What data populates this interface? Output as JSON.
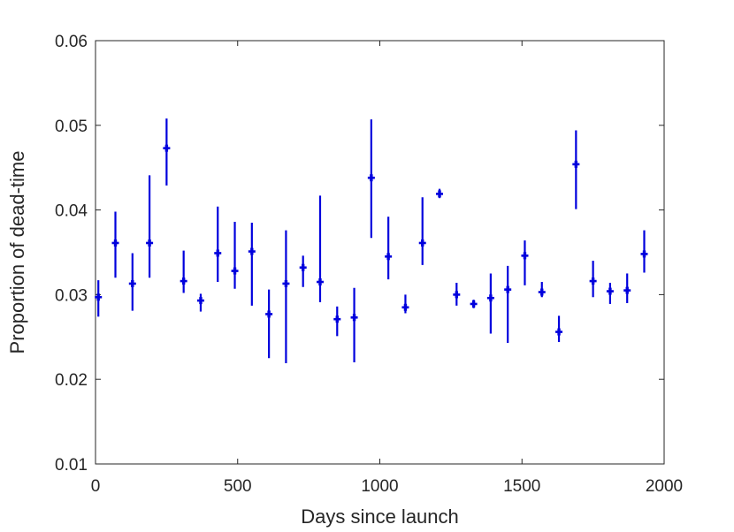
{
  "chart_data": {
    "type": "scatter",
    "title": "",
    "xlabel": "Days since launch",
    "ylabel": "Proportion of dead-time",
    "xlim": [
      0,
      2000
    ],
    "ylim": [
      0.01,
      0.06
    ],
    "xticks": [
      0,
      500,
      1000,
      1500,
      2000
    ],
    "xtick_labels": [
      "0",
      "500",
      "1000",
      "1500",
      "2000"
    ],
    "yticks": [
      0.01,
      0.02,
      0.03,
      0.04,
      0.05,
      0.06
    ],
    "ytick_labels": [
      "0.01",
      "0.02",
      "0.03",
      "0.04",
      "0.05",
      "0.06"
    ],
    "grid": false,
    "legend": "none",
    "color": "#0000dd",
    "points": [
      {
        "x": 10,
        "y": 0.0297,
        "lo": 0.0274,
        "hi": 0.0317
      },
      {
        "x": 70,
        "y": 0.0361,
        "lo": 0.032,
        "hi": 0.0398
      },
      {
        "x": 130,
        "y": 0.0313,
        "lo": 0.0281,
        "hi": 0.0349
      },
      {
        "x": 190,
        "y": 0.0361,
        "lo": 0.032,
        "hi": 0.0441
      },
      {
        "x": 250,
        "y": 0.0473,
        "lo": 0.0429,
        "hi": 0.0508
      },
      {
        "x": 310,
        "y": 0.0316,
        "lo": 0.0302,
        "hi": 0.0352
      },
      {
        "x": 370,
        "y": 0.0293,
        "lo": 0.028,
        "hi": 0.0301
      },
      {
        "x": 430,
        "y": 0.0349,
        "lo": 0.0315,
        "hi": 0.0404
      },
      {
        "x": 490,
        "y": 0.0328,
        "lo": 0.0307,
        "hi": 0.0386
      },
      {
        "x": 550,
        "y": 0.0351,
        "lo": 0.0287,
        "hi": 0.0385
      },
      {
        "x": 610,
        "y": 0.0277,
        "lo": 0.0225,
        "hi": 0.0306
      },
      {
        "x": 670,
        "y": 0.0313,
        "lo": 0.0219,
        "hi": 0.0376
      },
      {
        "x": 730,
        "y": 0.0332,
        "lo": 0.0309,
        "hi": 0.0346
      },
      {
        "x": 790,
        "y": 0.0315,
        "lo": 0.0291,
        "hi": 0.0417
      },
      {
        "x": 850,
        "y": 0.0271,
        "lo": 0.0251,
        "hi": 0.0286
      },
      {
        "x": 910,
        "y": 0.0273,
        "lo": 0.022,
        "hi": 0.0308
      },
      {
        "x": 970,
        "y": 0.0438,
        "lo": 0.0367,
        "hi": 0.0507
      },
      {
        "x": 1030,
        "y": 0.0345,
        "lo": 0.0318,
        "hi": 0.0392
      },
      {
        "x": 1090,
        "y": 0.0285,
        "lo": 0.0278,
        "hi": 0.03
      },
      {
        "x": 1150,
        "y": 0.0361,
        "lo": 0.0335,
        "hi": 0.0415
      },
      {
        "x": 1210,
        "y": 0.0419,
        "lo": 0.0414,
        "hi": 0.0425
      },
      {
        "x": 1270,
        "y": 0.03,
        "lo": 0.0287,
        "hi": 0.0314
      },
      {
        "x": 1330,
        "y": 0.0289,
        "lo": 0.0284,
        "hi": 0.0294
      },
      {
        "x": 1390,
        "y": 0.0296,
        "lo": 0.0254,
        "hi": 0.0325
      },
      {
        "x": 1450,
        "y": 0.0306,
        "lo": 0.0243,
        "hi": 0.0334
      },
      {
        "x": 1510,
        "y": 0.0346,
        "lo": 0.0311,
        "hi": 0.0364
      },
      {
        "x": 1570,
        "y": 0.0303,
        "lo": 0.0297,
        "hi": 0.0315
      },
      {
        "x": 1630,
        "y": 0.0256,
        "lo": 0.0244,
        "hi": 0.0275
      },
      {
        "x": 1690,
        "y": 0.0454,
        "lo": 0.0401,
        "hi": 0.0494
      },
      {
        "x": 1750,
        "y": 0.0316,
        "lo": 0.0297,
        "hi": 0.034
      },
      {
        "x": 1810,
        "y": 0.0304,
        "lo": 0.0289,
        "hi": 0.0314
      },
      {
        "x": 1870,
        "y": 0.0305,
        "lo": 0.029,
        "hi": 0.0325
      },
      {
        "x": 1930,
        "y": 0.0348,
        "lo": 0.0326,
        "hi": 0.0376
      }
    ]
  }
}
